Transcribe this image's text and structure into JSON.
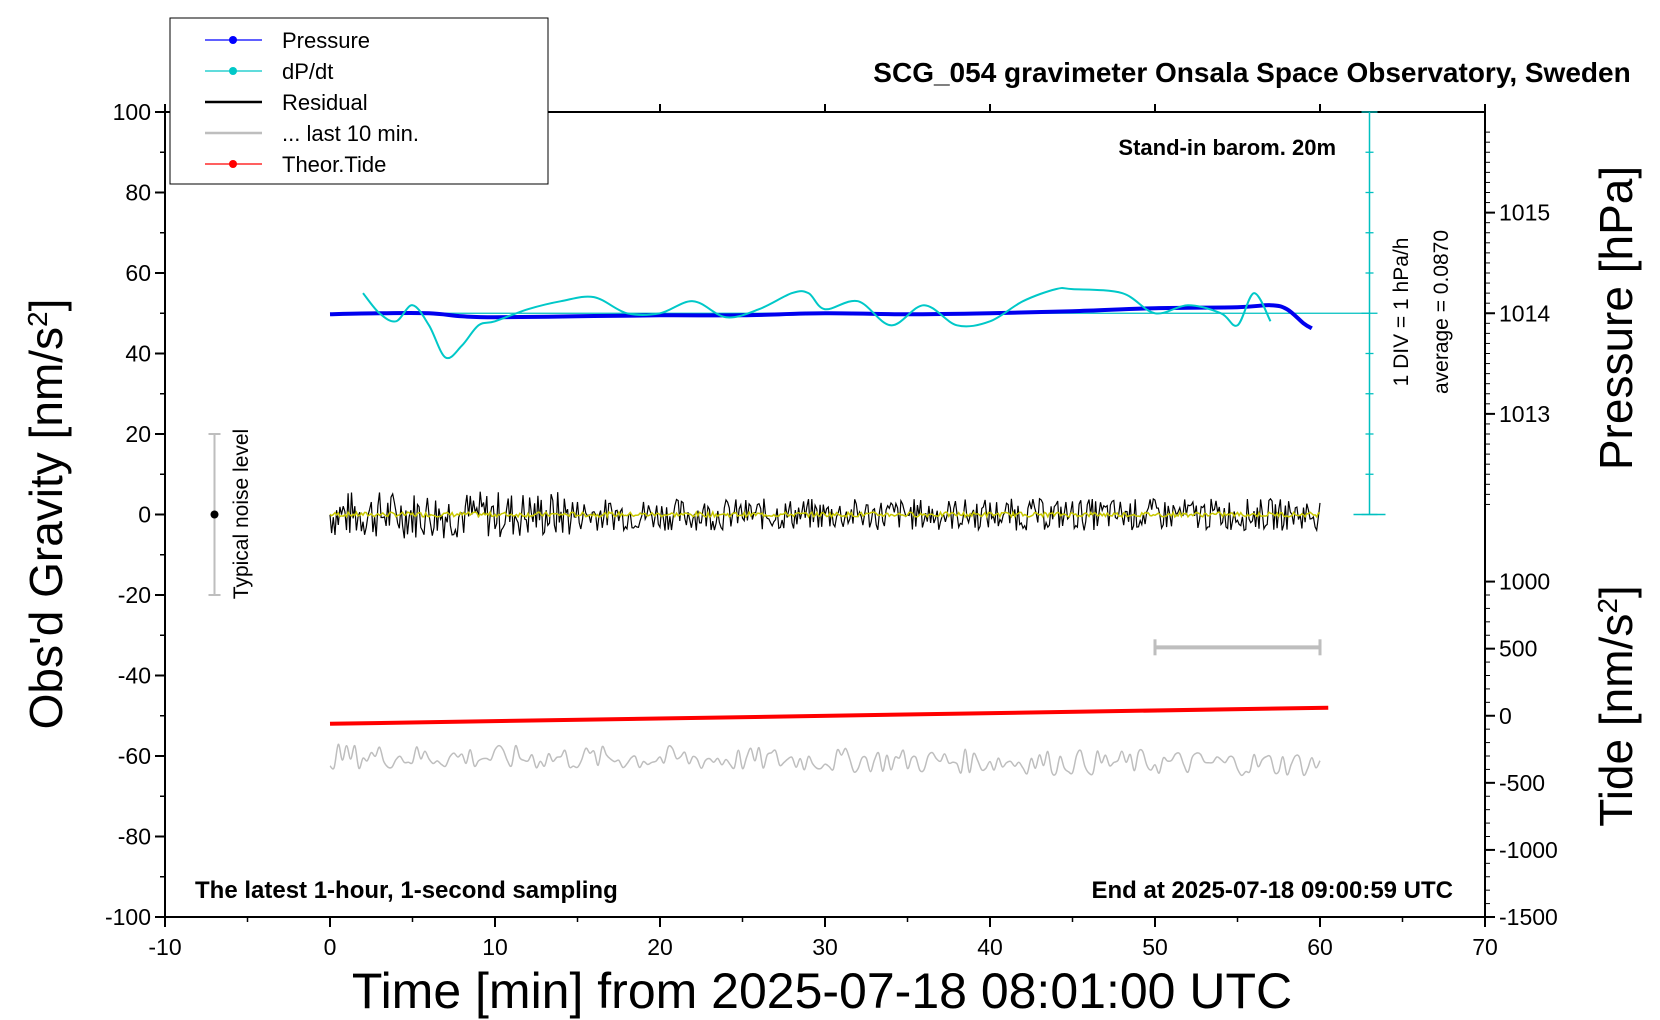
{
  "chart_data": {
    "type": "line",
    "title": "SCG_054 gravimeter Onsala Space Observatory, Sweden",
    "xlabel": "Time [min] from 2025-07-18 08:01:00 UTC",
    "ylabel": "Obs'd Gravity [nm/s",
    "ylabel_sup": "2",
    "ylabel_close": "]",
    "y2label": "Pressure [hPa]",
    "y3label": "Tide [nm/s",
    "y3label_sup": "2",
    "y3label_close": "]",
    "xlim": [
      -10,
      70
    ],
    "ylim": [
      -100,
      100
    ],
    "x_ticks": [
      "-10",
      "0",
      "10",
      "20",
      "30",
      "40",
      "50",
      "60",
      "70"
    ],
    "y_ticks": [
      "100",
      "80",
      "60",
      "40",
      "20",
      "0",
      "-20",
      "-40",
      "-60",
      "-80",
      "-100"
    ],
    "pressure_ticks": [
      "1015",
      "1014",
      "1013"
    ],
    "tide_ticks": [
      "1000",
      "500",
      "0",
      "-500",
      "-1000",
      "-1500"
    ],
    "grid": false,
    "legend_position": "top-left",
    "legend": [
      {
        "label": "Pressure",
        "color": "#0000ff",
        "marker": true
      },
      {
        "label": "dP/dt",
        "color": "#00c8c8",
        "marker": true
      },
      {
        "label": "Residual",
        "color": "#000000",
        "marker": false
      },
      {
        "label": "... last 10 min.",
        "color": "#bebebe",
        "marker": false
      },
      {
        "label": "Theor.Tide",
        "color": "#ff0000",
        "marker": true
      }
    ],
    "annotations": {
      "barometer": "Stand-in barom. 20m",
      "div_scale": "1 DIV = 1 hPa/h",
      "average": "average = 0.0870",
      "noise": "Typical noise level",
      "latest": "The latest 1-hour, 1-second sampling",
      "end": "End at 2025-07-18 09:00:59 UTC"
    },
    "series": [
      {
        "name": "Pressure",
        "unit": "hPa",
        "x": [
          0,
          3,
          6,
          8,
          10,
          15,
          20,
          25,
          30,
          35,
          40,
          45,
          50,
          55,
          57,
          58,
          59,
          59.5
        ],
        "y": [
          1013.99,
          1014.0,
          1014.0,
          1013.97,
          1013.96,
          1013.97,
          1013.98,
          1013.98,
          1014.0,
          1013.99,
          1014.0,
          1014.02,
          1014.05,
          1014.06,
          1014.08,
          1014.04,
          1013.9,
          1013.85
        ]
      },
      {
        "name": "dP/dt",
        "unit": "nm/s2-axis",
        "x": [
          2,
          3,
          4,
          5,
          6,
          7,
          8,
          9,
          10,
          12,
          14,
          16,
          18,
          20,
          22,
          24,
          26,
          28,
          29,
          30,
          32,
          34,
          36,
          38,
          40,
          42,
          44,
          45,
          48,
          50,
          52,
          54,
          55,
          56,
          57
        ],
        "y": [
          55,
          50,
          48,
          52,
          47,
          39,
          42,
          47,
          48,
          51,
          53,
          54,
          50,
          50,
          53,
          49,
          51,
          55,
          55,
          51,
          53,
          47,
          52,
          47,
          48,
          53,
          56,
          56,
          55,
          50,
          52,
          50,
          47,
          55,
          48
        ]
      },
      {
        "name": "Residual",
        "unit": "nm/s2",
        "x": [
          0,
          60
        ],
        "y": [
          0,
          0
        ],
        "amplitude": 4
      },
      {
        "name": "... last 10 min.",
        "unit": "nm/s2",
        "x": [
          0,
          60
        ],
        "y": [
          -60,
          -62
        ],
        "amplitude": 3
      },
      {
        "name": "Theor.Tide",
        "unit": "nm/s2",
        "x": [
          0,
          60.5
        ],
        "y": [
          -60,
          60
        ]
      }
    ],
    "noise_bar": {
      "x": -7,
      "y": 0,
      "low": -20,
      "high": 20
    },
    "last10_bar": {
      "x0": 50,
      "x1": 60,
      "y": -33
    }
  }
}
